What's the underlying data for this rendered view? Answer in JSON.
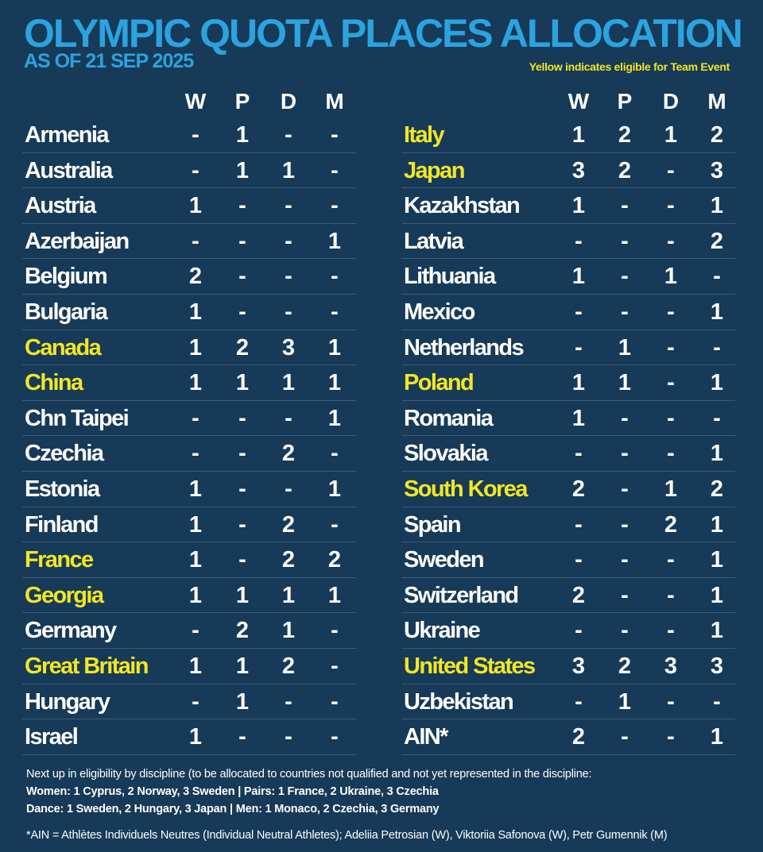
{
  "title": "OLYMPIC QUOTA PLACES ALLOCATION",
  "subtitle": "AS OF 21 SEP 2025",
  "legend_note": "Yellow indicates eligible for Team Event",
  "columns": [
    "W",
    "P",
    "D",
    "M"
  ],
  "colors": {
    "title": "#2ba3e0",
    "team_event": "#f2e626",
    "background": "#163a57"
  },
  "left_rows": [
    {
      "country": "Armenia",
      "team": false,
      "W": "-",
      "P": "1",
      "D": "-",
      "M": "-"
    },
    {
      "country": "Australia",
      "team": false,
      "W": "-",
      "P": "1",
      "D": "1",
      "M": "-"
    },
    {
      "country": "Austria",
      "team": false,
      "W": "1",
      "P": "-",
      "D": "-",
      "M": "-"
    },
    {
      "country": "Azerbaijan",
      "team": false,
      "W": "-",
      "P": "-",
      "D": "-",
      "M": "1"
    },
    {
      "country": "Belgium",
      "team": false,
      "W": "2",
      "P": "-",
      "D": "-",
      "M": "-"
    },
    {
      "country": "Bulgaria",
      "team": false,
      "W": "1",
      "P": "-",
      "D": "-",
      "M": "-"
    },
    {
      "country": "Canada",
      "team": true,
      "W": "1",
      "P": "2",
      "D": "3",
      "M": "1"
    },
    {
      "country": "China",
      "team": true,
      "W": "1",
      "P": "1",
      "D": "1",
      "M": "1"
    },
    {
      "country": "Chn Taipei",
      "team": false,
      "W": "-",
      "P": "-",
      "D": "-",
      "M": "1"
    },
    {
      "country": "Czechia",
      "team": false,
      "W": "-",
      "P": "-",
      "D": "2",
      "M": "-"
    },
    {
      "country": "Estonia",
      "team": false,
      "W": "1",
      "P": "-",
      "D": "-",
      "M": "1"
    },
    {
      "country": "Finland",
      "team": false,
      "W": "1",
      "P": "-",
      "D": "2",
      "M": "-"
    },
    {
      "country": "France",
      "team": true,
      "W": "1",
      "P": "-",
      "D": "2",
      "M": "2"
    },
    {
      "country": "Georgia",
      "team": true,
      "W": "1",
      "P": "1",
      "D": "1",
      "M": "1"
    },
    {
      "country": "Germany",
      "team": false,
      "W": "-",
      "P": "2",
      "D": "1",
      "M": "-"
    },
    {
      "country": "Great Britain",
      "team": true,
      "W": "1",
      "P": "1",
      "D": "2",
      "M": "-"
    },
    {
      "country": "Hungary",
      "team": false,
      "W": "-",
      "P": "1",
      "D": "-",
      "M": "-"
    },
    {
      "country": "Israel",
      "team": false,
      "W": "1",
      "P": "-",
      "D": "-",
      "M": "-"
    }
  ],
  "right_rows": [
    {
      "country": "Italy",
      "team": true,
      "W": "1",
      "P": "2",
      "D": "1",
      "M": "2"
    },
    {
      "country": "Japan",
      "team": true,
      "W": "3",
      "P": "2",
      "D": "-",
      "M": "3"
    },
    {
      "country": "Kazakhstan",
      "team": false,
      "W": "1",
      "P": "-",
      "D": "-",
      "M": "1"
    },
    {
      "country": "Latvia",
      "team": false,
      "W": "-",
      "P": "-",
      "D": "-",
      "M": "2"
    },
    {
      "country": "Lithuania",
      "team": false,
      "W": "1",
      "P": "-",
      "D": "1",
      "M": "-"
    },
    {
      "country": "Mexico",
      "team": false,
      "W": "-",
      "P": "-",
      "D": "-",
      "M": "1"
    },
    {
      "country": "Netherlands",
      "team": false,
      "W": "-",
      "P": "1",
      "D": "-",
      "M": "-"
    },
    {
      "country": "Poland",
      "team": true,
      "W": "1",
      "P": "1",
      "D": "-",
      "M": "1"
    },
    {
      "country": "Romania",
      "team": false,
      "W": "1",
      "P": "-",
      "D": "-",
      "M": "-"
    },
    {
      "country": "Slovakia",
      "team": false,
      "W": "-",
      "P": "-",
      "D": "-",
      "M": "1"
    },
    {
      "country": "South Korea",
      "team": true,
      "W": "2",
      "P": "-",
      "D": "1",
      "M": "2"
    },
    {
      "country": "Spain",
      "team": false,
      "W": "-",
      "P": "-",
      "D": "2",
      "M": "1"
    },
    {
      "country": "Sweden",
      "team": false,
      "W": "-",
      "P": "-",
      "D": "-",
      "M": "1"
    },
    {
      "country": "Switzerland",
      "team": false,
      "W": "2",
      "P": "-",
      "D": "-",
      "M": "1"
    },
    {
      "country": "Ukraine",
      "team": false,
      "W": "-",
      "P": "-",
      "D": "-",
      "M": "1"
    },
    {
      "country": "United States",
      "team": true,
      "W": "3",
      "P": "2",
      "D": "3",
      "M": "3"
    },
    {
      "country": "Uzbekistan",
      "team": false,
      "W": "-",
      "P": "1",
      "D": "-",
      "M": "-"
    },
    {
      "country": "AIN*",
      "team": false,
      "W": "2",
      "P": "-",
      "D": "-",
      "M": "1"
    }
  ],
  "footer": {
    "intro": "Next up in eligibility by discipline (to be allocated to countries not qualified and not yet represented in the discipline:",
    "line1": "Women: 1 Cyprus, 2 Norway, 3 Sweden  |  Pairs: 1 France, 2 Ukraine, 3 Czechia",
    "line2": "Dance: 1 Sweden, 2 Hungary, 3 Japan  |  Men: 1 Monaco, 2 Czechia, 3 Germany",
    "ain_note": "*AIN = Athlètes Individuels Neutres (Individual Neutral Athletes); Adeliia Petrosian (W), Viktoriia Safonova (W), Petr Gumennik (M)"
  }
}
